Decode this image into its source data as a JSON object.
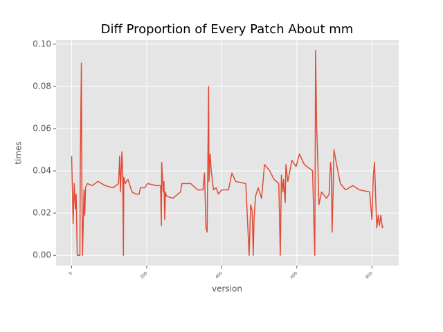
{
  "chart_data": {
    "type": "line",
    "title": "Diff Proportion of Every Patch About mm",
    "x_label": "version",
    "y_label": "times",
    "xlim": [
      -41.5,
      871.5
    ],
    "ylim": [
      -0.00485,
      0.1019
    ],
    "xticks": [
      0,
      200,
      400,
      600,
      800
    ],
    "yticks": [
      {
        "value": 0,
        "label": "0.00"
      },
      0.02,
      0.04,
      0.06,
      0.08,
      {
        "value": 0.1,
        "label": "0.10"
      }
    ],
    "grid": true,
    "series": [
      {
        "color": "#E24A33",
        "x": [
          0,
          4,
          7,
          10,
          12,
          15,
          22,
          23,
          26,
          27,
          29,
          33,
          35,
          37,
          42,
          55,
          70,
          90,
          110,
          125,
          128,
          130,
          134,
          136,
          138,
          139,
          143,
          150,
          161,
          171,
          180,
          183,
          195,
          202,
          226,
          237,
          239,
          240,
          244,
          246,
          248,
          250,
          253,
          270,
          290,
          294,
          317,
          336,
          350,
          354,
          358,
          361,
          365,
          366,
          369,
          372,
          378,
          385,
          391,
          400,
          418,
          427,
          437,
          464,
          473,
          477,
          481,
          484,
          486,
          490,
          497,
          506,
          514,
          528,
          539,
          552,
          556,
          559,
          563,
          565,
          569,
          571,
          576,
          587,
          598,
          607,
          620,
          642,
          648,
          650,
          653,
          655,
          659,
          666,
          679,
          686,
          690,
          692,
          694,
          696,
          699,
          705,
          716,
          730,
          749,
          767,
          794,
          800,
          804,
          807,
          813,
          817,
          820,
          824,
          828,
          829
        ],
        "values": [
          0.047,
          0.015,
          0.034,
          0.022,
          0.029,
          0.0,
          0.0,
          0.043,
          0.091,
          0.038,
          0.0,
          0.031,
          0.019,
          0.032,
          0.034,
          0.033,
          0.035,
          0.033,
          0.032,
          0.034,
          0.047,
          0.03,
          0.049,
          0.04,
          0.0,
          0.037,
          0.034,
          0.036,
          0.03,
          0.029,
          0.029,
          0.032,
          0.032,
          0.034,
          0.033,
          0.033,
          0.014,
          0.044,
          0.03,
          0.035,
          0.017,
          0.03,
          0.028,
          0.027,
          0.03,
          0.034,
          0.034,
          0.031,
          0.031,
          0.039,
          0.013,
          0.011,
          0.08,
          0.035,
          0.048,
          0.04,
          0.031,
          0.032,
          0.029,
          0.031,
          0.031,
          0.039,
          0.035,
          0.034,
          0.0,
          0.024,
          0.021,
          0.0,
          0.017,
          0.028,
          0.032,
          0.027,
          0.043,
          0.04,
          0.036,
          0.034,
          0.0,
          0.038,
          0.03,
          0.036,
          0.025,
          0.043,
          0.035,
          0.045,
          0.042,
          0.048,
          0.043,
          0.04,
          0.0,
          0.097,
          0.06,
          0.05,
          0.024,
          0.03,
          0.027,
          0.029,
          0.044,
          0.04,
          0.011,
          0.025,
          0.05,
          0.044,
          0.034,
          0.031,
          0.033,
          0.031,
          0.03,
          0.017,
          0.038,
          0.044,
          0.013,
          0.019,
          0.014,
          0.019,
          0.013,
          0.014
        ]
      }
    ]
  }
}
